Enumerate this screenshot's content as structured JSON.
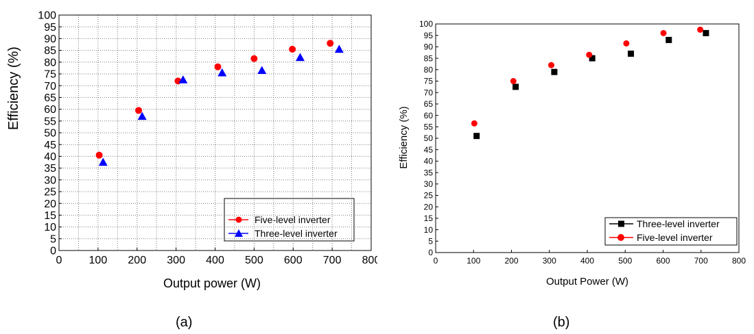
{
  "chart_data": [
    {
      "type": "scatter",
      "caption": "(a)",
      "xlabel": "Output power (W)",
      "ylabel": "Efficiency (%)",
      "xlim": [
        0,
        800
      ],
      "ylim": [
        0,
        100
      ],
      "x_ticks": [
        "0",
        "100",
        "200",
        "300",
        "400",
        "500",
        "600",
        "700",
        "800"
      ],
      "y_ticks": [
        "0",
        "5",
        "10",
        "15",
        "20",
        "25",
        "30",
        "35",
        "40",
        "45",
        "50",
        "55",
        "60",
        "65",
        "70",
        "75",
        "80",
        "85",
        "90",
        "95",
        "100"
      ],
      "grid": "dotted",
      "legend_position": "bottom-right",
      "series": [
        {
          "name": "Five-level inverter",
          "marker": "circle",
          "color": "#ff0000",
          "x": [
            103,
            204,
            305,
            407,
            500,
            598,
            695
          ],
          "y": [
            40.5,
            59.5,
            72,
            78,
            81.5,
            85.5,
            88
          ]
        },
        {
          "name": "Three-level inverter",
          "marker": "triangle",
          "color": "#0000ff",
          "x": [
            113,
            213,
            318,
            418,
            520,
            618,
            718
          ],
          "y": [
            37.5,
            57,
            72.5,
            75.5,
            76.5,
            82,
            85.5
          ]
        }
      ]
    },
    {
      "type": "scatter",
      "caption": "(b)",
      "xlabel": "Output Power (W)",
      "ylabel": "Efficiency (%)",
      "xlim": [
        0,
        800
      ],
      "ylim": [
        0,
        100
      ],
      "x_ticks": [
        "0",
        "100",
        "200",
        "300",
        "400",
        "500",
        "600",
        "700",
        "800"
      ],
      "y_ticks": [
        "0",
        "5",
        "10",
        "15",
        "20",
        "25",
        "30",
        "35",
        "40",
        "45",
        "50",
        "55",
        "60",
        "65",
        "70",
        "75",
        "80",
        "85",
        "90",
        "95",
        "100"
      ],
      "grid": "none",
      "legend_position": "bottom-right",
      "series": [
        {
          "name": "Three-level inverter",
          "marker": "square",
          "color": "#000000",
          "x": [
            108,
            211,
            313,
            413,
            515,
            615,
            713
          ],
          "y": [
            51,
            72.5,
            79,
            85,
            87,
            93,
            96
          ]
        },
        {
          "name": "Five-level inverter",
          "marker": "circle",
          "color": "#ff0000",
          "x": [
            102,
            205,
            305,
            405,
            503,
            601,
            698
          ],
          "y": [
            56.5,
            75,
            82,
            86.5,
            91.5,
            96,
            97.5
          ]
        }
      ]
    }
  ]
}
